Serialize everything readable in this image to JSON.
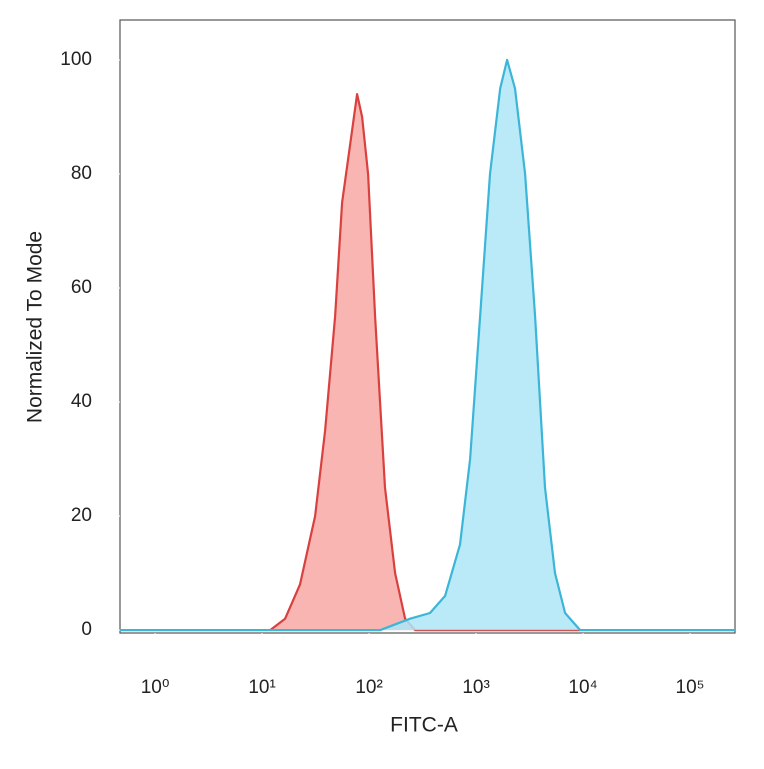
{
  "chart_data": {
    "type": "area",
    "x_label": "FITC-A",
    "y_label": "Normalized To Mode",
    "xscale": "log",
    "xlim": [
      0.47,
      263000
    ],
    "ylim": [
      -0.5,
      107
    ],
    "xticks": [
      {
        "value": 1,
        "label": "10⁰"
      },
      {
        "value": 10,
        "label": "10¹"
      },
      {
        "value": 100,
        "label": "10²"
      },
      {
        "value": 1000,
        "label": "10³"
      },
      {
        "value": 10000,
        "label": "10⁴"
      },
      {
        "value": 100000,
        "label": "10⁵"
      }
    ],
    "yticks": [
      0,
      20,
      40,
      60,
      80,
      100
    ],
    "series": [
      {
        "color": "#d9413f",
        "fill": "#f7a8a4",
        "x": [
          11.9,
          16.4,
          22.6,
          31.3,
          38.8,
          48.1,
          56.0,
          66.4,
          77.3,
          86.0,
          97.9,
          113.8,
          141,
          175,
          217,
          269,
          9380
        ],
        "values": [
          0,
          2,
          8,
          20,
          35,
          55,
          75,
          85,
          94,
          90,
          80,
          55,
          25,
          10,
          2,
          0,
          0
        ]
      },
      {
        "color": "#3bb5d8",
        "fill": "#aee6f7",
        "x": [
          0.47,
          127,
          242,
          371,
          513,
          708,
          879,
          1090,
          1350,
          1680,
          1950,
          2310,
          2870,
          3560,
          4410,
          5470,
          6790,
          9380,
          263000
        ],
        "values": [
          0,
          0,
          2,
          3,
          6,
          15,
          30,
          55,
          80,
          95,
          100,
          95,
          80,
          55,
          25,
          10,
          3,
          0,
          0
        ]
      }
    ]
  }
}
